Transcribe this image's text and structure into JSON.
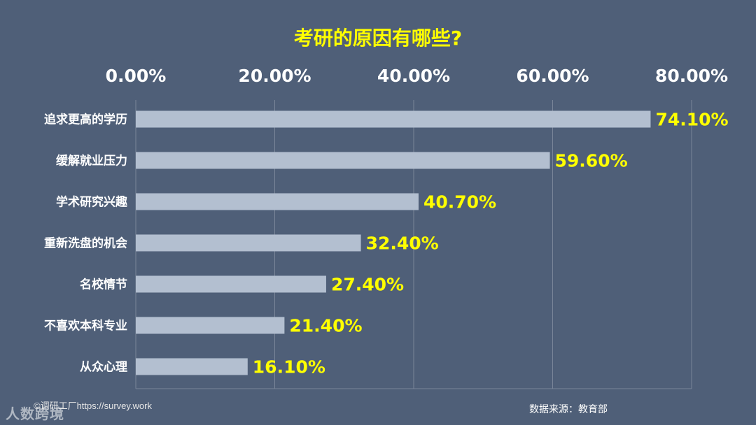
{
  "chart_data": {
    "type": "bar",
    "orientation": "horizontal",
    "title": "考研的原因有哪些?",
    "categories": [
      "追求更高的学历",
      "缓解就业压力",
      "学术研究兴趣",
      "重新洗盘的机会",
      "名校情节",
      "不喜欢本科专业",
      "从众心理"
    ],
    "values": [
      74.1,
      59.6,
      40.7,
      32.4,
      27.4,
      21.4,
      16.1
    ],
    "value_labels": [
      "74.10%",
      "59.60%",
      "40.70%",
      "32.40%",
      "27.40%",
      "21.40%",
      "16.10%"
    ],
    "xlim": [
      0,
      80
    ],
    "x_ticks": [
      0,
      20,
      40,
      60,
      80
    ],
    "x_tick_labels": [
      "0.00%",
      "20.00%",
      "40.00%",
      "60.00%",
      "80.00%"
    ],
    "x_axis_position": "top",
    "grid": true,
    "colors": {
      "background": "#4f5f78",
      "bar": "#b3bfd0",
      "value_label": "#ffff00",
      "title": "#ffff00",
      "text": "#ffffff",
      "grid": "#7a8699"
    }
  },
  "footer": {
    "credit": "©调研工厂https://survey.work",
    "source": "数据来源：教育部",
    "watermark": "人数跨境"
  }
}
